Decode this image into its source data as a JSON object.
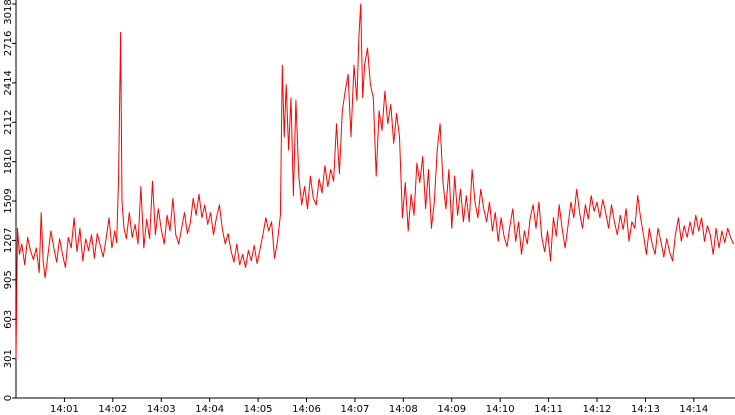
{
  "chart_data": {
    "type": "line",
    "title": "",
    "xlabel": "",
    "ylabel": "",
    "x_tick_labels": [
      "14:01",
      "14:02",
      "14:03",
      "14:04",
      "14:05",
      "14:06",
      "14:07",
      "14:08",
      "14:09",
      "14:10",
      "14:11",
      "14:12",
      "14:13",
      "14:14"
    ],
    "y_tick_labels": [
      "0",
      "301",
      "603",
      "905",
      "1207",
      "1509",
      "1810",
      "2112",
      "2414",
      "2716",
      "3018"
    ],
    "ylim": [
      0,
      3018
    ],
    "xlim_minutes": [
      0.0,
      14.85
    ],
    "grid": false,
    "legend": "none",
    "colors": {
      "line": "#ff0000",
      "axis": "#000000",
      "background": "#ffffff"
    },
    "series": [
      {
        "color": "#ff0000",
        "points_minutes_since_1400": [
          [
            0.0,
            300
          ],
          [
            0.03,
            1300
          ],
          [
            0.07,
            1100
          ],
          [
            0.12,
            1180
          ],
          [
            0.18,
            1020
          ],
          [
            0.24,
            1230
          ],
          [
            0.3,
            1130
          ],
          [
            0.36,
            1060
          ],
          [
            0.42,
            1150
          ],
          [
            0.48,
            960
          ],
          [
            0.52,
            1420
          ],
          [
            0.56,
            1050
          ],
          [
            0.6,
            920
          ],
          [
            0.66,
            1100
          ],
          [
            0.72,
            1280
          ],
          [
            0.78,
            1150
          ],
          [
            0.84,
            1040
          ],
          [
            0.9,
            1220
          ],
          [
            0.96,
            1100
          ],
          [
            1.02,
            1000
          ],
          [
            1.08,
            1230
          ],
          [
            1.14,
            1150
          ],
          [
            1.2,
            1380
          ],
          [
            1.26,
            1120
          ],
          [
            1.32,
            1300
          ],
          [
            1.38,
            1050
          ],
          [
            1.44,
            1220
          ],
          [
            1.5,
            1130
          ],
          [
            1.56,
            1250
          ],
          [
            1.62,
            1070
          ],
          [
            1.68,
            1260
          ],
          [
            1.74,
            1170
          ],
          [
            1.8,
            1080
          ],
          [
            1.86,
            1220
          ],
          [
            1.92,
            1380
          ],
          [
            1.98,
            1150
          ],
          [
            2.04,
            1280
          ],
          [
            2.08,
            1190
          ],
          [
            2.12,
            1700
          ],
          [
            2.16,
            2800
          ],
          [
            2.19,
            1500
          ],
          [
            2.23,
            1300
          ],
          [
            2.28,
            1220
          ],
          [
            2.34,
            1420
          ],
          [
            2.4,
            1230
          ],
          [
            2.46,
            1330
          ],
          [
            2.52,
            1180
          ],
          [
            2.58,
            1620
          ],
          [
            2.64,
            1150
          ],
          [
            2.7,
            1370
          ],
          [
            2.76,
            1220
          ],
          [
            2.82,
            1660
          ],
          [
            2.88,
            1250
          ],
          [
            2.94,
            1450
          ],
          [
            3.0,
            1290
          ],
          [
            3.06,
            1180
          ],
          [
            3.12,
            1400
          ],
          [
            3.18,
            1280
          ],
          [
            3.24,
            1530
          ],
          [
            3.3,
            1250
          ],
          [
            3.36,
            1180
          ],
          [
            3.42,
            1300
          ],
          [
            3.48,
            1420
          ],
          [
            3.54,
            1260
          ],
          [
            3.6,
            1340
          ],
          [
            3.66,
            1530
          ],
          [
            3.72,
            1400
          ],
          [
            3.78,
            1560
          ],
          [
            3.84,
            1380
          ],
          [
            3.9,
            1480
          ],
          [
            3.96,
            1330
          ],
          [
            4.02,
            1420
          ],
          [
            4.08,
            1250
          ],
          [
            4.14,
            1380
          ],
          [
            4.2,
            1480
          ],
          [
            4.26,
            1300
          ],
          [
            4.32,
            1180
          ],
          [
            4.38,
            1260
          ],
          [
            4.44,
            1130
          ],
          [
            4.5,
            1040
          ],
          [
            4.56,
            1180
          ],
          [
            4.62,
            1020
          ],
          [
            4.68,
            1100
          ],
          [
            4.74,
            1000
          ],
          [
            4.8,
            1130
          ],
          [
            4.86,
            1050
          ],
          [
            4.92,
            1170
          ],
          [
            4.98,
            1030
          ],
          [
            5.04,
            1140
          ],
          [
            5.1,
            1250
          ],
          [
            5.16,
            1380
          ],
          [
            5.22,
            1280
          ],
          [
            5.28,
            1350
          ],
          [
            5.34,
            1070
          ],
          [
            5.4,
            1200
          ],
          [
            5.46,
            1400
          ],
          [
            5.5,
            2550
          ],
          [
            5.54,
            2000
          ],
          [
            5.58,
            2400
          ],
          [
            5.63,
            1900
          ],
          [
            5.68,
            2300
          ],
          [
            5.73,
            1550
          ],
          [
            5.78,
            2280
          ],
          [
            5.84,
            1700
          ],
          [
            5.9,
            1480
          ],
          [
            5.96,
            1620
          ],
          [
            6.02,
            1450
          ],
          [
            6.08,
            1700
          ],
          [
            6.14,
            1530
          ],
          [
            6.2,
            1480
          ],
          [
            6.26,
            1680
          ],
          [
            6.32,
            1570
          ],
          [
            6.38,
            1780
          ],
          [
            6.44,
            1620
          ],
          [
            6.5,
            1750
          ],
          [
            6.56,
            1660
          ],
          [
            6.62,
            2100
          ],
          [
            6.68,
            1720
          ],
          [
            6.74,
            2200
          ],
          [
            6.8,
            2350
          ],
          [
            6.86,
            2480
          ],
          [
            6.92,
            2000
          ],
          [
            6.98,
            2550
          ],
          [
            7.04,
            2280
          ],
          [
            7.08,
            2750
          ],
          [
            7.12,
            3018
          ],
          [
            7.16,
            2300
          ],
          [
            7.2,
            2550
          ],
          [
            7.26,
            2680
          ],
          [
            7.32,
            2400
          ],
          [
            7.38,
            2300
          ],
          [
            7.44,
            1700
          ],
          [
            7.5,
            2200
          ],
          [
            7.56,
            2050
          ],
          [
            7.62,
            2350
          ],
          [
            7.68,
            2100
          ],
          [
            7.74,
            2250
          ],
          [
            7.8,
            1950
          ],
          [
            7.86,
            2180
          ],
          [
            7.92,
            2000
          ],
          [
            7.98,
            1380
          ],
          [
            8.04,
            1650
          ],
          [
            8.1,
            1280
          ],
          [
            8.16,
            1560
          ],
          [
            8.22,
            1400
          ],
          [
            8.28,
            1800
          ],
          [
            8.34,
            1650
          ],
          [
            8.4,
            1850
          ],
          [
            8.46,
            1450
          ],
          [
            8.52,
            1750
          ],
          [
            8.58,
            1300
          ],
          [
            8.64,
            1500
          ],
          [
            8.7,
            1900
          ],
          [
            8.76,
            2100
          ],
          [
            8.82,
            1650
          ],
          [
            8.88,
            1450
          ],
          [
            8.94,
            1750
          ],
          [
            9.0,
            1300
          ],
          [
            9.06,
            1700
          ],
          [
            9.12,
            1400
          ],
          [
            9.18,
            1600
          ],
          [
            9.24,
            1350
          ],
          [
            9.3,
            1550
          ],
          [
            9.36,
            1350
          ],
          [
            9.42,
            1750
          ],
          [
            9.48,
            1500
          ],
          [
            9.54,
            1380
          ],
          [
            9.6,
            1600
          ],
          [
            9.66,
            1450
          ],
          [
            9.72,
            1350
          ],
          [
            9.78,
            1500
          ],
          [
            9.84,
            1280
          ],
          [
            9.9,
            1420
          ],
          [
            9.96,
            1200
          ],
          [
            10.02,
            1380
          ],
          [
            10.08,
            1240
          ],
          [
            10.14,
            1160
          ],
          [
            10.2,
            1320
          ],
          [
            10.26,
            1450
          ],
          [
            10.32,
            1200
          ],
          [
            10.38,
            1350
          ],
          [
            10.44,
            1100
          ],
          [
            10.5,
            1280
          ],
          [
            10.56,
            1180
          ],
          [
            10.62,
            1380
          ],
          [
            10.68,
            1480
          ],
          [
            10.74,
            1300
          ],
          [
            10.8,
            1500
          ],
          [
            10.86,
            1230
          ],
          [
            10.92,
            1120
          ],
          [
            10.98,
            1280
          ],
          [
            11.04,
            1050
          ],
          [
            11.1,
            1380
          ],
          [
            11.16,
            1240
          ],
          [
            11.22,
            1480
          ],
          [
            11.28,
            1300
          ],
          [
            11.34,
            1150
          ],
          [
            11.4,
            1320
          ],
          [
            11.46,
            1500
          ],
          [
            11.52,
            1380
          ],
          [
            11.58,
            1600
          ],
          [
            11.64,
            1420
          ],
          [
            11.7,
            1300
          ],
          [
            11.76,
            1480
          ],
          [
            11.82,
            1370
          ],
          [
            11.88,
            1550
          ],
          [
            11.94,
            1430
          ],
          [
            12.0,
            1500
          ],
          [
            12.06,
            1380
          ],
          [
            12.12,
            1520
          ],
          [
            12.18,
            1420
          ],
          [
            12.24,
            1300
          ],
          [
            12.3,
            1480
          ],
          [
            12.36,
            1350
          ],
          [
            12.42,
            1250
          ],
          [
            12.48,
            1400
          ],
          [
            12.54,
            1290
          ],
          [
            12.6,
            1450
          ],
          [
            12.66,
            1200
          ],
          [
            12.72,
            1350
          ],
          [
            12.78,
            1300
          ],
          [
            12.84,
            1550
          ],
          [
            12.9,
            1380
          ],
          [
            12.96,
            1250
          ],
          [
            13.02,
            1100
          ],
          [
            13.08,
            1300
          ],
          [
            13.14,
            1180
          ],
          [
            13.2,
            1100
          ],
          [
            13.26,
            1300
          ],
          [
            13.32,
            1200
          ],
          [
            13.38,
            1080
          ],
          [
            13.44,
            1220
          ],
          [
            13.5,
            1120
          ],
          [
            13.56,
            1050
          ],
          [
            13.62,
            1250
          ],
          [
            13.68,
            1380
          ],
          [
            13.74,
            1200
          ],
          [
            13.8,
            1320
          ],
          [
            13.86,
            1230
          ],
          [
            13.92,
            1350
          ],
          [
            13.98,
            1250
          ],
          [
            14.04,
            1400
          ],
          [
            14.1,
            1280
          ],
          [
            14.16,
            1380
          ],
          [
            14.22,
            1200
          ],
          [
            14.28,
            1320
          ],
          [
            14.34,
            1250
          ],
          [
            14.4,
            1100
          ],
          [
            14.46,
            1300
          ],
          [
            14.52,
            1150
          ],
          [
            14.58,
            1280
          ],
          [
            14.64,
            1190
          ],
          [
            14.7,
            1300
          ],
          [
            14.76,
            1230
          ],
          [
            14.82,
            1180
          ]
        ]
      }
    ]
  }
}
